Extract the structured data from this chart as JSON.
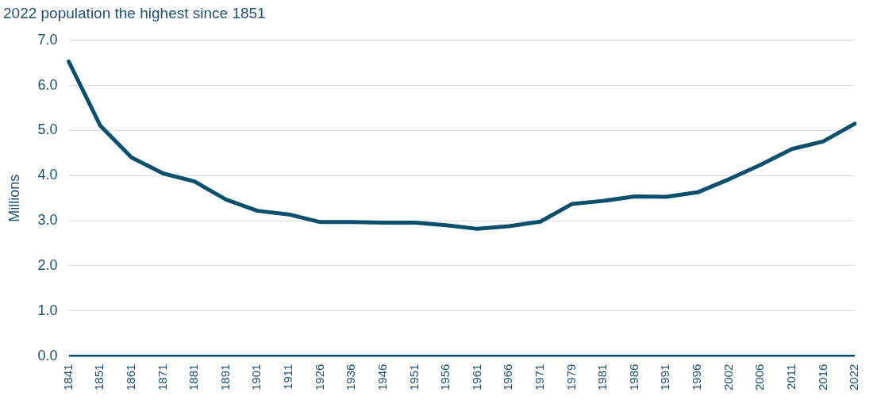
{
  "chart_data": {
    "type": "line",
    "title": "2022 population the highest since 1851",
    "ylabel": "Millions",
    "categories": [
      "1841",
      "1851",
      "1861",
      "1871",
      "1881",
      "1891",
      "1901",
      "1911",
      "1926",
      "1936",
      "1946",
      "1951",
      "1956",
      "1961",
      "1966",
      "1971",
      "1979",
      "1981",
      "1986",
      "1991",
      "1996",
      "2002",
      "2006",
      "2011",
      "2016",
      "2022"
    ],
    "series": [
      {
        "color": "#0b4f6c",
        "values": [
          6.53,
          5.11,
          4.4,
          4.05,
          3.87,
          3.47,
          3.22,
          3.14,
          2.97,
          2.97,
          2.96,
          2.96,
          2.9,
          2.82,
          2.88,
          2.98,
          3.37,
          3.44,
          3.54,
          3.53,
          3.63,
          3.92,
          4.24,
          4.59,
          4.76,
          5.15
        ]
      }
    ],
    "ylim": [
      0,
      7
    ],
    "yticks": [
      {
        "value": 0,
        "label": "0.0"
      },
      {
        "value": 1,
        "label": "1.0"
      },
      {
        "value": 2,
        "label": "2.0"
      },
      {
        "value": 3,
        "label": "3.0"
      },
      {
        "value": 4,
        "label": "4.0"
      },
      {
        "value": 5,
        "label": "5.0"
      },
      {
        "value": 6,
        "label": "6.0"
      },
      {
        "value": 7,
        "label": "7.0"
      }
    ],
    "grid": "y",
    "legend": false,
    "marker": "none",
    "line_style": "solid"
  }
}
